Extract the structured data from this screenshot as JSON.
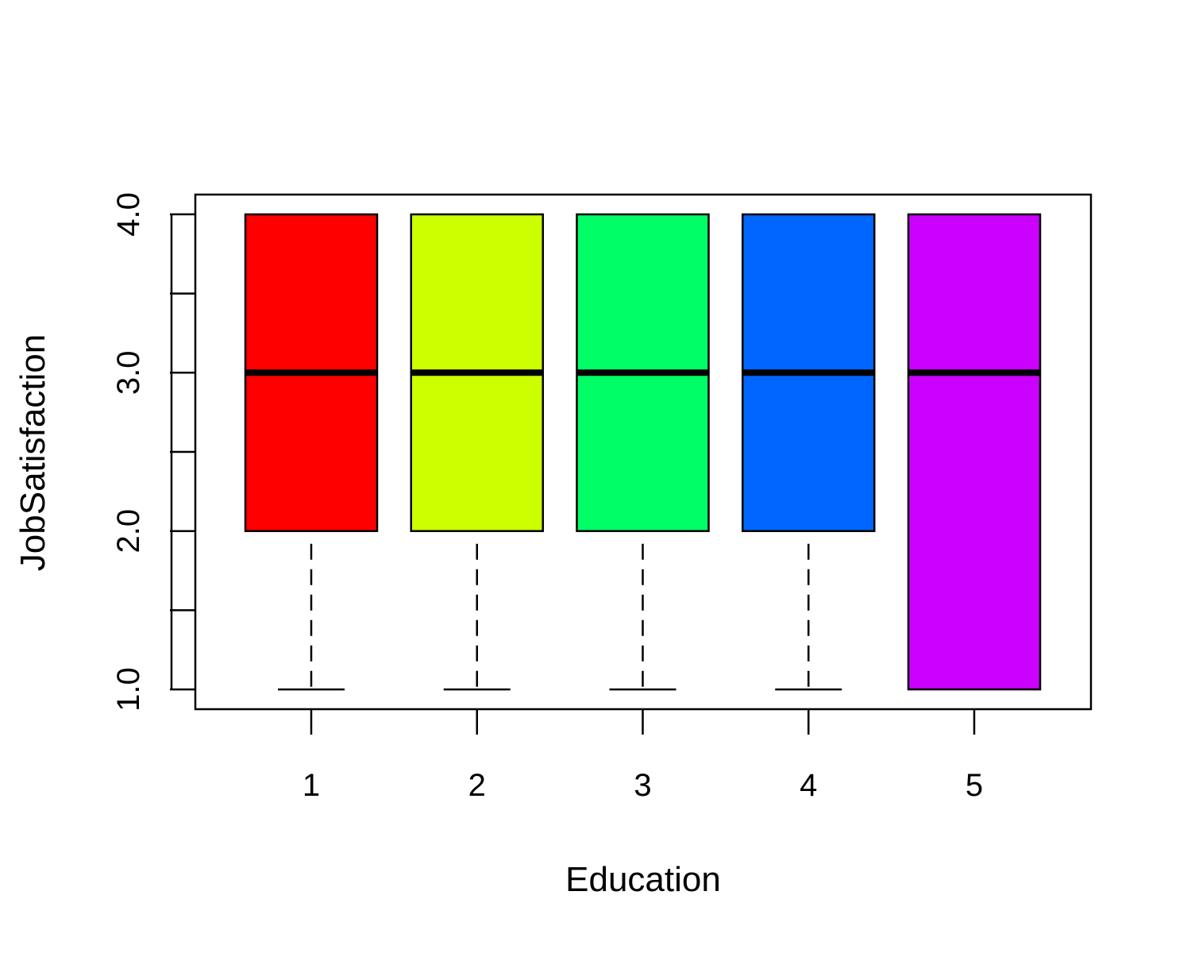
{
  "chart_data": {
    "type": "boxplot",
    "title": "",
    "xlabel": "Education",
    "ylabel": "JobSatisfaction",
    "categories": [
      "1",
      "2",
      "3",
      "4",
      "5"
    ],
    "yticks": [
      1.0,
      1.5,
      2.0,
      2.5,
      3.0,
      3.5,
      4.0
    ],
    "ytick_labels": [
      "1.0",
      "2.0",
      "3.0",
      "4.0"
    ],
    "ylim": [
      0.875,
      4.125
    ],
    "grid": false,
    "boxes": [
      {
        "category": "1",
        "min": 1,
        "q1": 2,
        "median": 3,
        "q3": 4,
        "max": 4,
        "color": "#FF0000"
      },
      {
        "category": "2",
        "min": 1,
        "q1": 2,
        "median": 3,
        "q3": 4,
        "max": 4,
        "color": "#CCFF00"
      },
      {
        "category": "3",
        "min": 1,
        "q1": 2,
        "median": 3,
        "q3": 4,
        "max": 4,
        "color": "#00FF66"
      },
      {
        "category": "4",
        "min": 1,
        "q1": 2,
        "median": 3,
        "q3": 4,
        "max": 4,
        "color": "#0066FF"
      },
      {
        "category": "5",
        "min": 1,
        "q1": 1,
        "median": 3,
        "q3": 4,
        "max": 4,
        "color": "#CC00FF"
      }
    ]
  }
}
